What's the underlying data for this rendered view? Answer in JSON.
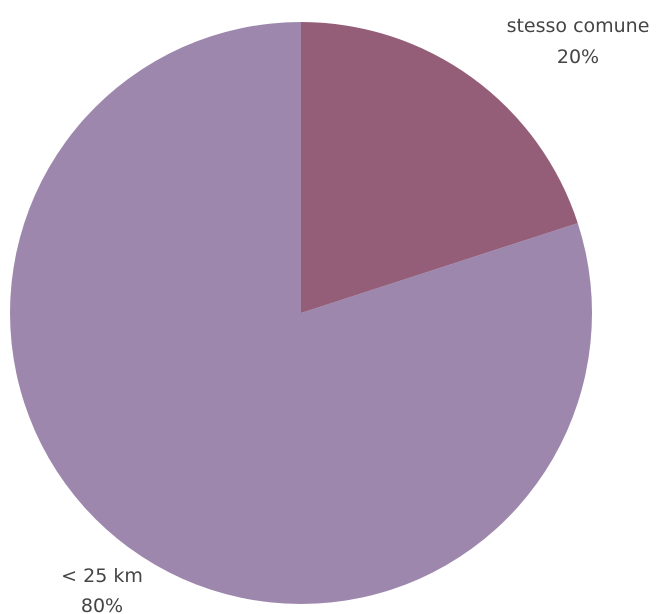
{
  "chart_data": {
    "type": "pie",
    "slices": [
      {
        "label": "stesso comune",
        "value": 20,
        "value_label": "20%",
        "color": "#955e78"
      },
      {
        "label": "< 25 km",
        "value": 80,
        "value_label": "80%",
        "color": "#9d87ad"
      }
    ],
    "start_angle": "12 o'clock",
    "direction": "clockwise",
    "legend": "none",
    "data_labels": "outside"
  }
}
